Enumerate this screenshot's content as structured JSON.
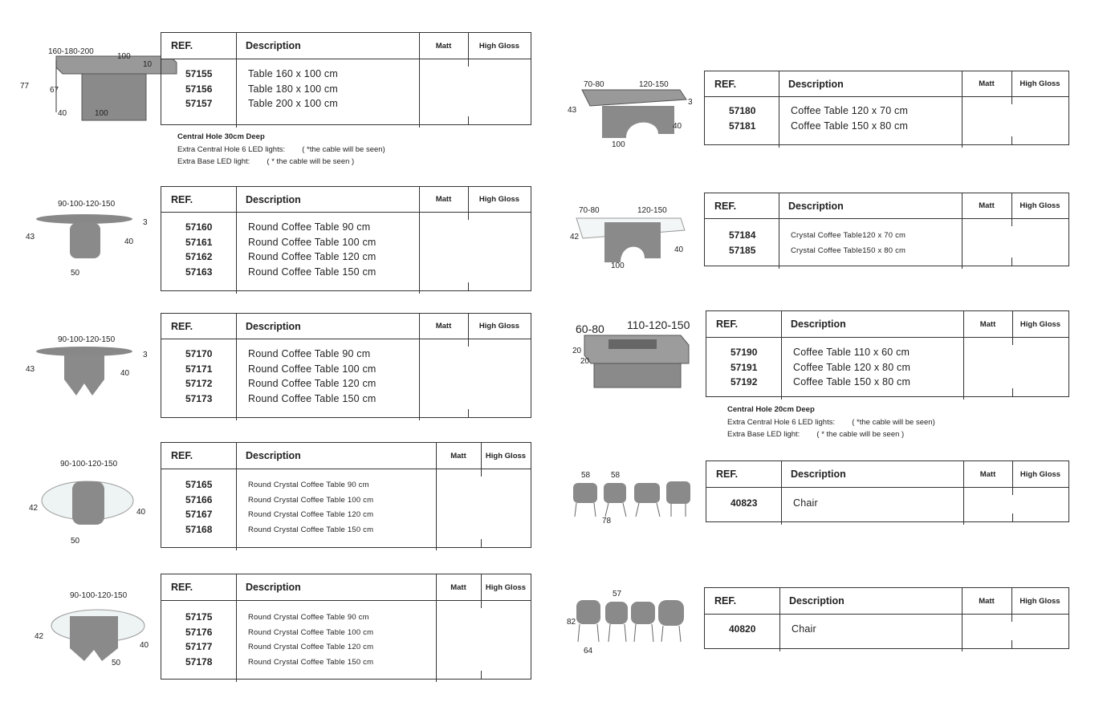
{
  "headers": {
    "ref": "REF.",
    "description": "Description",
    "matt": "Matt",
    "high_gloss": "High Gloss"
  },
  "colors": {
    "line": "#333333",
    "product_grey": "#8a8a8a"
  },
  "products": [
    {
      "dims": [
        "160-180-200",
        "100",
        "10",
        "77",
        "67",
        "40",
        "100"
      ],
      "rows": [
        {
          "ref": "57155",
          "desc": "Table 160 x 100 cm"
        },
        {
          "ref": "57156",
          "desc": "Table 180 x 100 cm"
        },
        {
          "ref": "57157",
          "desc": "Table 200 x 100 cm"
        }
      ],
      "notes": [
        "Central Hole 30cm Deep",
        "Extra Central Hole 6 LED lights:        ( *the cable will be seen)",
        "Extra Base LED light:        ( * the cable will be seen )"
      ]
    },
    {
      "dims": [
        "90-100-120-150",
        "3",
        "43",
        "40",
        "50"
      ],
      "rows": [
        {
          "ref": "57160",
          "desc": "Round Coffee Table 90 cm"
        },
        {
          "ref": "57161",
          "desc": "Round Coffee Table 100 cm"
        },
        {
          "ref": "57162",
          "desc": "Round Coffee Table 120 cm"
        },
        {
          "ref": "57163",
          "desc": "Round Coffee Table 150 cm"
        }
      ]
    },
    {
      "dims": [
        "90-100-120-150",
        "3",
        "43",
        "40"
      ],
      "rows": [
        {
          "ref": "57170",
          "desc": "Round Coffee Table 90 cm"
        },
        {
          "ref": "57171",
          "desc": "Round Coffee Table 100 cm"
        },
        {
          "ref": "57172",
          "desc": "Round Coffee Table 120 cm"
        },
        {
          "ref": "57173",
          "desc": "Round Coffee Table 150 cm"
        }
      ]
    },
    {
      "dims": [
        "90-100-120-150",
        "42",
        "40",
        "50"
      ],
      "rows": [
        {
          "ref": "57165",
          "desc": "Round Crystal Coffee Table 90 cm"
        },
        {
          "ref": "57166",
          "desc": "Round Crystal Coffee Table 100 cm"
        },
        {
          "ref": "57167",
          "desc": "Round Crystal Coffee Table 120 cm"
        },
        {
          "ref": "57168",
          "desc": "Round Crystal Coffee Table 150 cm"
        }
      ]
    },
    {
      "dims": [
        "90-100-120-150",
        "42",
        "40",
        "50"
      ],
      "rows": [
        {
          "ref": "57175",
          "desc": "Round Crystal Coffee Table 90 cm"
        },
        {
          "ref": "57176",
          "desc": "Round Crystal Coffee Table 100 cm"
        },
        {
          "ref": "57177",
          "desc": "Round Crystal Coffee Table 120 cm"
        },
        {
          "ref": "57178",
          "desc": "Round Crystal Coffee Table 150 cm"
        }
      ]
    },
    {
      "dims": [
        "70-80",
        "120-150",
        "3",
        "43",
        "40",
        "100"
      ],
      "rows": [
        {
          "ref": "57180",
          "desc": "Coffee Table 120 x 70 cm"
        },
        {
          "ref": "57181",
          "desc": "Coffee Table 150 x 80 cm"
        }
      ]
    },
    {
      "dims": [
        "70-80",
        "120-150",
        "42",
        "40",
        "100"
      ],
      "rows": [
        {
          "ref": "57184",
          "desc": "Crystal Coffee Table120 x 70 cm"
        },
        {
          "ref": "57185",
          "desc": "Crystal Coffee Table150 x 80 cm"
        }
      ]
    },
    {
      "dims": [
        "60-80",
        "110-120-150",
        "20",
        "20"
      ],
      "rows": [
        {
          "ref": "57190",
          "desc": "Coffee Table 110 x 60 cm"
        },
        {
          "ref": "57191",
          "desc": "Coffee Table 120 x 80 cm"
        },
        {
          "ref": "57192",
          "desc": "Coffee Table 150 x 80 cm"
        }
      ],
      "notes": [
        "Central Hole 20cm Deep",
        "Extra Central Hole 6 LED lights:        ( *the cable will be seen)",
        "Extra Base LED light:        ( * the cable will be seen )"
      ]
    },
    {
      "dims": [
        "58",
        "58",
        "78"
      ],
      "rows": [
        {
          "ref": "40823",
          "desc": "Chair"
        }
      ]
    },
    {
      "dims": [
        "57",
        "82",
        "64"
      ],
      "rows": [
        {
          "ref": "40820",
          "desc": "Chair"
        }
      ]
    }
  ]
}
